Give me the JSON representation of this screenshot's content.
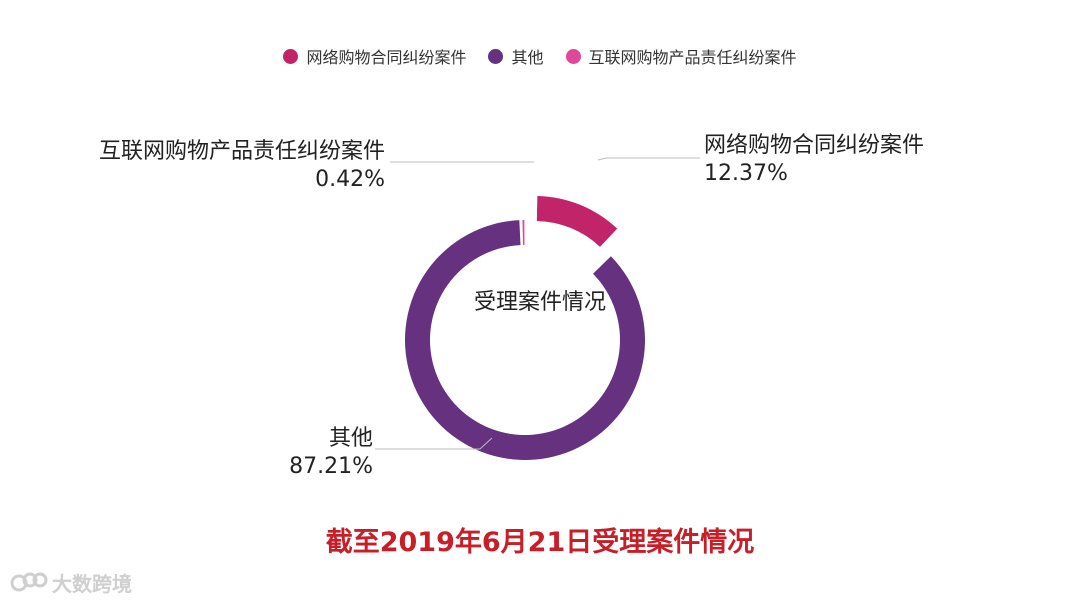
{
  "chart_data": {
    "type": "pie",
    "variant": "donut",
    "title": "截至2019年6月21日受理案件情况",
    "center_label": "受理案件情况",
    "legend_position": "top-center",
    "series": [
      {
        "name": "网络购物合同纠纷案件",
        "value": 12.37,
        "value_label": "12.37%",
        "color": "#c2246a"
      },
      {
        "name": "其他",
        "value": 87.21,
        "value_label": "87.21%",
        "color": "#66317f"
      },
      {
        "name": "互联网购物产品责任纠纷案件",
        "value": 0.42,
        "value_label": "0.42%",
        "color": "#e0479a"
      }
    ]
  },
  "watermark": {
    "text": "大数跨境"
  }
}
